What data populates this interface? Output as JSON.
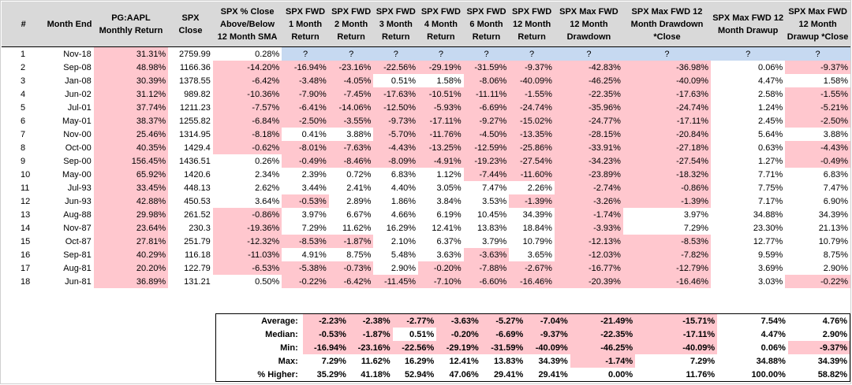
{
  "headers": [
    "#",
    "Month End",
    "PG:AAPL Monthly Return",
    "SPX Close",
    "SPX % Close Above/Below 12 Month SMA",
    "SPX FWD 1 Month Return",
    "SPX FWD 2 Month Return",
    "SPX FWD 3 Month Return",
    "SPX FWD 4 Month Return",
    "SPX FWD 6 Month Return",
    "SPX FWD 12 Month Return",
    "SPX Max FWD 12 Month Drawdown",
    "SPX Max FWD 12 Month Drawdown *Close",
    "SPX Max FWD 12 Month Drawup",
    "SPX Max FWD 12 Month Drawup *Close"
  ],
  "rows": [
    [
      "1",
      "Nov-18",
      "31.31%",
      "2759.99",
      "0.28%",
      "?",
      "?",
      "?",
      "?",
      "?",
      "?",
      "?",
      "?",
      "?",
      "?"
    ],
    [
      "2",
      "Sep-08",
      "48.98%",
      "1166.36",
      "-14.20%",
      "-16.94%",
      "-23.16%",
      "-22.56%",
      "-29.19%",
      "-31.59%",
      "-9.37%",
      "-42.83%",
      "-36.98%",
      "0.06%",
      "-9.37%"
    ],
    [
      "3",
      "Jan-08",
      "30.39%",
      "1378.55",
      "-6.42%",
      "-3.48%",
      "-4.05%",
      "0.51%",
      "1.58%",
      "-8.06%",
      "-40.09%",
      "-46.25%",
      "-40.09%",
      "4.47%",
      "1.58%"
    ],
    [
      "4",
      "Jun-02",
      "31.12%",
      "989.82",
      "-10.36%",
      "-7.90%",
      "-7.45%",
      "-17.63%",
      "-10.51%",
      "-11.11%",
      "-1.55%",
      "-22.35%",
      "-17.63%",
      "2.58%",
      "-1.55%"
    ],
    [
      "5",
      "Jul-01",
      "37.74%",
      "1211.23",
      "-7.57%",
      "-6.41%",
      "-14.06%",
      "-12.50%",
      "-5.93%",
      "-6.69%",
      "-24.74%",
      "-35.96%",
      "-24.74%",
      "1.24%",
      "-5.21%"
    ],
    [
      "6",
      "May-01",
      "38.37%",
      "1255.82",
      "-6.84%",
      "-2.50%",
      "-3.55%",
      "-9.73%",
      "-17.11%",
      "-9.27%",
      "-15.02%",
      "-24.77%",
      "-17.11%",
      "2.45%",
      "-2.50%"
    ],
    [
      "7",
      "Nov-00",
      "25.46%",
      "1314.95",
      "-8.18%",
      "0.41%",
      "3.88%",
      "-5.70%",
      "-11.76%",
      "-4.50%",
      "-13.35%",
      "-28.15%",
      "-20.84%",
      "5.64%",
      "3.88%"
    ],
    [
      "8",
      "Oct-00",
      "40.35%",
      "1429.4",
      "-0.62%",
      "-8.01%",
      "-7.63%",
      "-4.43%",
      "-13.25%",
      "-12.59%",
      "-25.86%",
      "-33.91%",
      "-27.18%",
      "0.63%",
      "-4.43%"
    ],
    [
      "9",
      "Sep-00",
      "156.45%",
      "1436.51",
      "0.26%",
      "-0.49%",
      "-8.46%",
      "-8.09%",
      "-4.91%",
      "-19.23%",
      "-27.54%",
      "-34.23%",
      "-27.54%",
      "1.27%",
      "-0.49%"
    ],
    [
      "10",
      "May-00",
      "65.92%",
      "1420.6",
      "2.34%",
      "2.39%",
      "0.72%",
      "6.83%",
      "1.12%",
      "-7.44%",
      "-11.60%",
      "-23.89%",
      "-18.32%",
      "7.71%",
      "6.83%"
    ],
    [
      "11",
      "Jul-93",
      "33.45%",
      "448.13",
      "2.62%",
      "3.44%",
      "2.41%",
      "4.40%",
      "3.05%",
      "7.47%",
      "2.26%",
      "-2.74%",
      "-0.86%",
      "7.75%",
      "7.47%"
    ],
    [
      "12",
      "Jun-93",
      "42.88%",
      "450.53",
      "3.64%",
      "-0.53%",
      "2.89%",
      "1.86%",
      "3.84%",
      "3.53%",
      "-1.39%",
      "-3.26%",
      "-1.39%",
      "7.17%",
      "6.90%"
    ],
    [
      "13",
      "Aug-88",
      "29.98%",
      "261.52",
      "-0.86%",
      "3.97%",
      "6.67%",
      "4.66%",
      "6.19%",
      "10.45%",
      "34.39%",
      "-1.74%",
      "3.97%",
      "34.88%",
      "34.39%"
    ],
    [
      "14",
      "Nov-87",
      "23.64%",
      "230.3",
      "-19.36%",
      "7.29%",
      "11.62%",
      "16.29%",
      "12.41%",
      "13.83%",
      "18.84%",
      "-3.93%",
      "7.29%",
      "23.30%",
      "21.13%"
    ],
    [
      "15",
      "Oct-87",
      "27.81%",
      "251.79",
      "-12.32%",
      "-8.53%",
      "-1.87%",
      "2.10%",
      "6.37%",
      "3.79%",
      "10.79%",
      "-12.13%",
      "-8.53%",
      "12.77%",
      "10.79%"
    ],
    [
      "16",
      "Sep-81",
      "40.29%",
      "116.18",
      "-11.03%",
      "4.91%",
      "8.75%",
      "5.48%",
      "3.63%",
      "-3.63%",
      "3.65%",
      "-12.03%",
      "-7.82%",
      "9.59%",
      "8.75%"
    ],
    [
      "17",
      "Aug-81",
      "20.20%",
      "122.79",
      "-6.53%",
      "-5.38%",
      "-0.73%",
      "2.90%",
      "-0.20%",
      "-7.88%",
      "-2.67%",
      "-16.77%",
      "-12.79%",
      "3.69%",
      "2.90%"
    ],
    [
      "18",
      "Jun-81",
      "36.89%",
      "131.21",
      "0.50%",
      "-0.22%",
      "-6.42%",
      "-11.45%",
      "-7.10%",
      "-6.60%",
      "-16.46%",
      "-20.39%",
      "-16.46%",
      "3.03%",
      "-0.22%"
    ]
  ],
  "summary": [
    {
      "label": "Average:",
      "values": [
        "-2.23%",
        "-2.38%",
        "-2.77%",
        "-3.63%",
        "-5.27%",
        "-7.04%",
        "-21.49%",
        "-15.71%",
        "7.54%",
        "4.76%"
      ]
    },
    {
      "label": "Median:",
      "values": [
        "-0.53%",
        "-1.87%",
        "0.51%",
        "-0.20%",
        "-6.69%",
        "-9.37%",
        "-22.35%",
        "-17.11%",
        "4.47%",
        "2.90%"
      ]
    },
    {
      "label": "Min:",
      "values": [
        "-16.94%",
        "-23.16%",
        "-22.56%",
        "-29.19%",
        "-31.59%",
        "-40.09%",
        "-46.25%",
        "-40.09%",
        "0.06%",
        "-9.37%"
      ]
    },
    {
      "label": "Max:",
      "values": [
        "7.29%",
        "11.62%",
        "16.29%",
        "12.41%",
        "13.83%",
        "34.39%",
        "-1.74%",
        "7.29%",
        "34.88%",
        "34.39%"
      ]
    },
    {
      "label": "% Higher:",
      "values": [
        "35.29%",
        "41.18%",
        "52.94%",
        "47.06%",
        "29.41%",
        "29.41%",
        "0.00%",
        "11.76%",
        "100.00%",
        "58.82%"
      ]
    }
  ],
  "colors": {
    "negative_fill": "#ffc7ce",
    "unknown_fill": "#c6d9f1",
    "header_fill": "#d9d9d9"
  }
}
